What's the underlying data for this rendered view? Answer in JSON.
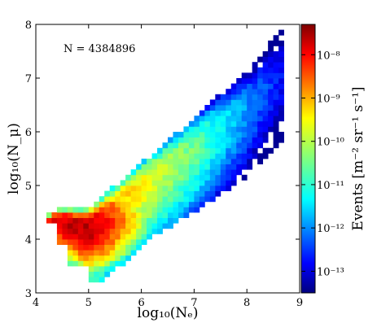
{
  "chart_data": {
    "type": "heatmap",
    "xlabel": "log₁₀(Nₑ)",
    "ylabel": "log₁₀(N_μ)",
    "xlim": [
      4,
      9
    ],
    "ylim": [
      3,
      8
    ],
    "xticks": [
      "4",
      "5",
      "6",
      "7",
      "8",
      "9"
    ],
    "yticks": [
      "3",
      "4",
      "5",
      "6",
      "7",
      "8"
    ],
    "annotation": "N = 4384896",
    "colorbar": {
      "label": "Events [m⁻² sr⁻¹ s⁻¹]",
      "scale": "log",
      "range": [
        -13.5,
        -7.3
      ],
      "ticks": [
        "10⁻⁸",
        "10⁻⁹",
        "10⁻¹⁰",
        "10⁻¹¹",
        "10⁻¹²",
        "10⁻¹³"
      ],
      "tick_exponents": [
        -8,
        -9,
        -10,
        -11,
        -12,
        -13
      ],
      "colormap": "jet"
    },
    "bin_width": 0.1,
    "ridge": {
      "description": "log10 event rate along a narrow diagonal band; peak near log10(Ne)=4.8, log10(Nmu)=4.1",
      "peak": {
        "x": 4.8,
        "y": 4.1,
        "value": -7.6
      },
      "center_line": [
        [
          4.4,
          4.4
        ],
        [
          5.0,
          4.3
        ],
        [
          6.0,
          5.05
        ],
        [
          7.0,
          5.75
        ],
        [
          8.0,
          6.5
        ],
        [
          8.6,
          7.1
        ]
      ]
    }
  }
}
